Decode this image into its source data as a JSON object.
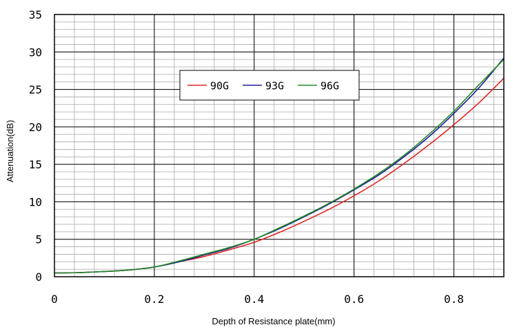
{
  "chart_data": {
    "type": "line",
    "title": "",
    "xlabel": "Depth of Resistance plate(mm)",
    "ylabel": "Attenuation(dB)",
    "xlim": [
      0,
      0.9
    ],
    "ylim": [
      0,
      35
    ],
    "x_ticks": [
      0,
      0.2,
      0.4,
      0.6,
      0.8
    ],
    "x_tick_labels": [
      "0",
      "0.2",
      "0.4",
      "0.6",
      "0.8"
    ],
    "y_ticks": [
      0,
      5,
      10,
      15,
      20,
      25,
      30,
      35
    ],
    "y_tick_labels": [
      "0",
      "5",
      "10",
      "15",
      "20",
      "25",
      "30",
      "35"
    ],
    "grid": true,
    "legend_position": "top-center",
    "x": [
      0,
      0.05,
      0.1,
      0.15,
      0.2,
      0.25,
      0.3,
      0.35,
      0.4,
      0.45,
      0.5,
      0.55,
      0.6,
      0.65,
      0.7,
      0.75,
      0.8,
      0.85,
      0.9
    ],
    "series": [
      {
        "name": "90G",
        "color": "#dd2222",
        "values": [
          0.5,
          0.55,
          0.7,
          0.9,
          1.3,
          2.0,
          2.7,
          3.6,
          4.6,
          5.9,
          7.4,
          9.0,
          10.8,
          12.8,
          15.1,
          17.6,
          20.3,
          23.2,
          26.5
        ]
      },
      {
        "name": "93G",
        "color": "#1a1a99",
        "values": [
          0.5,
          0.55,
          0.7,
          0.9,
          1.3,
          2.0,
          2.9,
          3.8,
          5.0,
          6.4,
          8.0,
          9.7,
          11.6,
          13.6,
          16.0,
          18.7,
          21.8,
          25.2,
          29.2
        ]
      },
      {
        "name": "96G",
        "color": "#228822",
        "values": [
          0.5,
          0.55,
          0.7,
          0.9,
          1.3,
          2.1,
          3.0,
          3.9,
          5.0,
          6.5,
          8.1,
          9.8,
          11.7,
          13.8,
          16.2,
          19.0,
          22.1,
          25.6,
          29.0
        ]
      }
    ]
  }
}
